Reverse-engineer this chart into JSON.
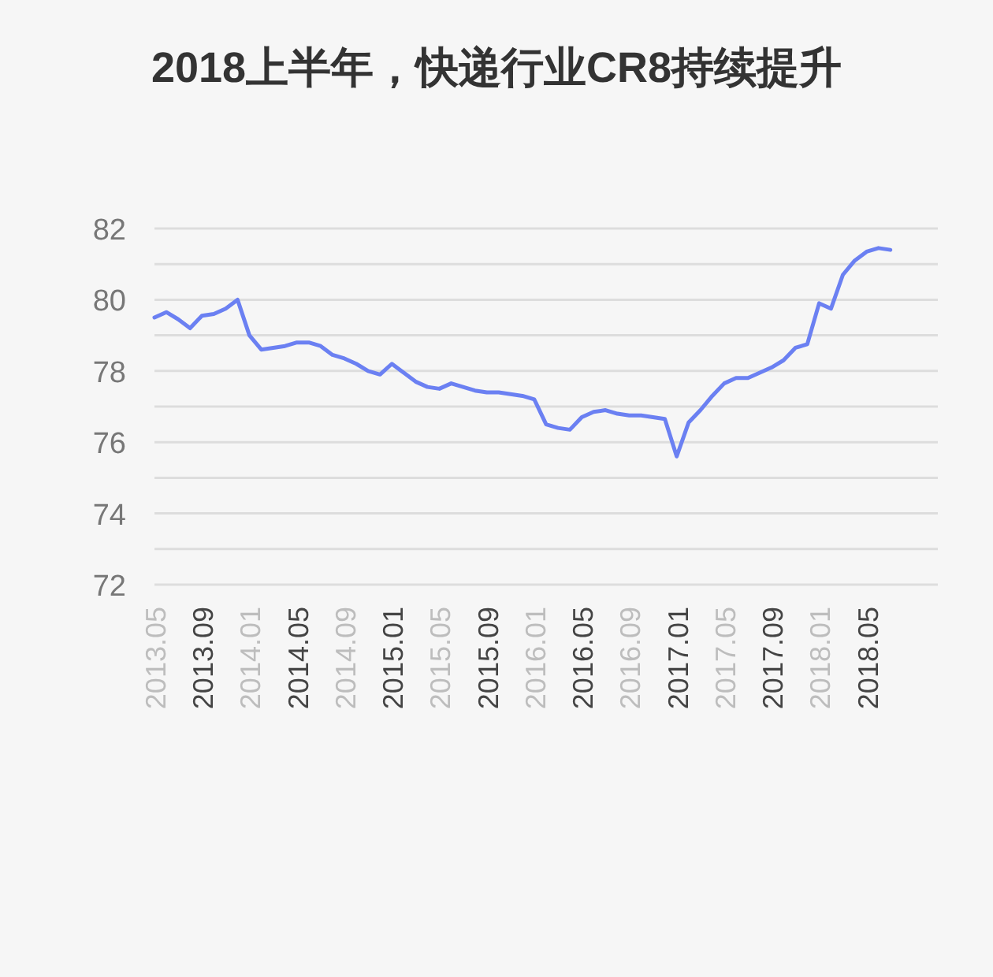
{
  "chart_data": {
    "type": "line",
    "title": "2018上半年，快递行业CR8持续提升",
    "x": [
      "2013-05",
      "2013-06",
      "2013-07",
      "2013-08",
      "2013-09",
      "2013-10",
      "2013-11",
      "2013-12",
      "2014-01",
      "2014-02",
      "2014-03",
      "2014-04",
      "2014-05",
      "2014-06",
      "2014-07",
      "2014-08",
      "2014-09",
      "2014-10",
      "2014-11",
      "2014-12",
      "2015-01",
      "2015-02",
      "2015-03",
      "2015-04",
      "2015-05",
      "2015-06",
      "2015-07",
      "2015-08",
      "2015-09",
      "2015-10",
      "2015-11",
      "2015-12",
      "2016-01",
      "2016-02",
      "2016-03",
      "2016-04",
      "2016-05",
      "2016-06",
      "2016-07",
      "2016-08",
      "2016-09",
      "2016-10",
      "2016-11",
      "2016-12",
      "2017-01",
      "2017-02",
      "2017-03",
      "2017-04",
      "2017-05",
      "2017-06",
      "2017-07",
      "2017-08",
      "2017-09",
      "2017-10",
      "2017-11",
      "2017-12",
      "2018-01",
      "2018-02",
      "2018-03",
      "2018-04",
      "2018-05",
      "2018-06",
      "2018-07"
    ],
    "series": [
      {
        "color": "#6b80f2",
        "values": [
          79.5,
          79.65,
          79.45,
          79.2,
          79.55,
          79.6,
          79.75,
          80.0,
          79.0,
          78.6,
          78.65,
          78.7,
          78.8,
          78.8,
          78.7,
          78.45,
          78.35,
          78.2,
          78.0,
          77.9,
          78.2,
          77.95,
          77.7,
          77.55,
          77.5,
          77.65,
          77.55,
          77.45,
          77.4,
          77.4,
          77.35,
          77.3,
          77.2,
          76.5,
          76.4,
          76.35,
          76.7,
          76.85,
          76.9,
          76.8,
          76.75,
          76.75,
          76.7,
          76.65,
          75.6,
          76.55,
          76.9,
          77.3,
          77.65,
          77.8,
          77.8,
          77.95,
          78.1,
          78.3,
          78.65,
          78.75,
          79.9,
          79.75,
          80.7,
          81.1,
          81.35,
          81.45,
          81.4
        ]
      }
    ],
    "xlim": [
      "2013-05",
      "2018-11"
    ],
    "xticks": [
      {
        "value": "2013-05",
        "label": "2013.05"
      },
      {
        "value": "2013-09",
        "label": "2013.09"
      },
      {
        "value": "2014-01",
        "label": "2014.01"
      },
      {
        "value": "2014-05",
        "label": "2014.05"
      },
      {
        "value": "2014-09",
        "label": "2014.09"
      },
      {
        "value": "2015-01",
        "label": "2015.01"
      },
      {
        "value": "2015-05",
        "label": "2015.05"
      },
      {
        "value": "2015-09",
        "label": "2015.09"
      },
      {
        "value": "2016-01",
        "label": "2016.01"
      },
      {
        "value": "2016-05",
        "label": "2016.05"
      },
      {
        "value": "2016-09",
        "label": "2016.09"
      },
      {
        "value": "2017-01",
        "label": "2017.01"
      },
      {
        "value": "2017-05",
        "label": "2017.05"
      },
      {
        "value": "2017-09",
        "label": "2017.09"
      },
      {
        "value": "2018-01",
        "label": "2018.01"
      },
      {
        "value": "2018-05",
        "label": "2018.05"
      }
    ],
    "ylim": [
      72,
      82
    ],
    "yticks": [
      72,
      {
        "value": 73,
        "label": null
      },
      74,
      {
        "value": 75,
        "label": null
      },
      76,
      {
        "value": 77,
        "label": null
      },
      78,
      {
        "value": 79,
        "label": null
      },
      80,
      {
        "value": 81,
        "label": null
      },
      82
    ],
    "grid": "y",
    "marker": "none",
    "line_style": "solid"
  }
}
